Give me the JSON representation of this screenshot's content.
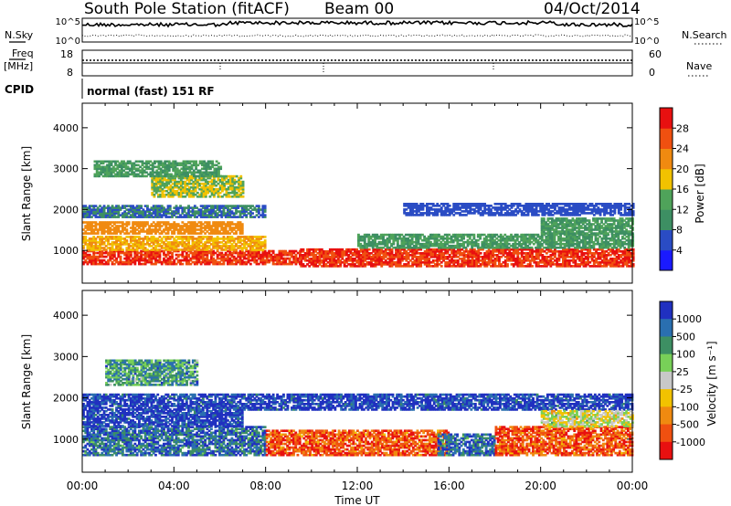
{
  "header": {
    "title": "South Pole Station (fitACF)",
    "beam": "Beam 00",
    "date": "04/Oct/2014"
  },
  "ancillary": {
    "nsky_label": "N.Sky",
    "nsearch_label": "N.Search",
    "nsky_ticks": [
      "10^5",
      "10^0"
    ],
    "freq_label_line1": "Freq",
    "freq_label_line2": "[MHz]",
    "freq_ticks": [
      "18",
      "8"
    ],
    "nave_label": "Nave",
    "nave_ticks": [
      "60",
      "0"
    ],
    "cpid_label": "CPID",
    "cpid_value": "normal (fast) 151 RF"
  },
  "colors": {
    "power_scale": [
      "#1a1aff",
      "#2a4cc4",
      "#3d8f63",
      "#4fa35a",
      "#f2c200",
      "#f08a10",
      "#f05010",
      "#e81010"
    ],
    "velocity_scale": [
      "#e81010",
      "#f05010",
      "#f08a10",
      "#f2c200",
      "#c8c8c8",
      "#78d058",
      "#3d8f63",
      "#2a6fb0",
      "#2030c0"
    ]
  },
  "chart_data": [
    {
      "type": "heatmap",
      "panel": "power",
      "ylabel": "Slant Range [km]",
      "xlabel": "",
      "ylim": [
        200,
        4600
      ],
      "yticks": [
        "1000",
        "2000",
        "3000",
        "4000"
      ],
      "x_ticks": [
        "00:00",
        "04:00",
        "08:00",
        "12:00",
        "16:00",
        "20:00",
        "00:00"
      ],
      "colorbar_title": "Power [dB]",
      "colorbar_ticks": [
        "4",
        "8",
        "12",
        "16",
        "20",
        "24",
        "28"
      ],
      "colorbar_range": [
        0,
        32
      ],
      "bands": [
        {
          "t0": 0.0,
          "t1": 9.5,
          "r0": 650,
          "r1": 1000,
          "level": 28
        },
        {
          "t0": 9.5,
          "t1": 24.0,
          "r0": 600,
          "r1": 1050,
          "level": 28
        },
        {
          "t0": 0.0,
          "t1": 8.0,
          "r0": 1000,
          "r1": 1350,
          "level": 20
        },
        {
          "t0": 0.0,
          "t1": 7.0,
          "r0": 1400,
          "r1": 1700,
          "level": 22
        },
        {
          "t0": 0.0,
          "t1": 8.0,
          "r0": 1800,
          "r1": 2100,
          "level": 8
        },
        {
          "t0": 12.0,
          "t1": 24.0,
          "r0": 1050,
          "r1": 1400,
          "level": 12
        },
        {
          "t0": 20.0,
          "t1": 24.0,
          "r0": 1400,
          "r1": 1800,
          "level": 12
        },
        {
          "t0": 14.0,
          "t1": 24.0,
          "r0": 1850,
          "r1": 2150,
          "level": 6
        },
        {
          "t0": 3.0,
          "t1": 7.0,
          "r0": 2300,
          "r1": 2800,
          "level": 16
        },
        {
          "t0": 0.5,
          "t1": 6.0,
          "r0": 2800,
          "r1": 3200,
          "level": 12
        }
      ]
    },
    {
      "type": "heatmap",
      "panel": "velocity",
      "ylabel": "Slant Range [km]",
      "xlabel": "Time UT",
      "ylim": [
        200,
        4600
      ],
      "yticks": [
        "1000",
        "2000",
        "3000",
        "4000"
      ],
      "x_ticks": [
        "00:00",
        "04:00",
        "08:00",
        "12:00",
        "16:00",
        "20:00",
        "00:00"
      ],
      "colorbar_title": "Velocity [m s⁻¹]",
      "colorbar_ticks": [
        "1000",
        "500",
        "100",
        "25",
        "-25",
        "-100",
        "-500",
        "-1000"
      ],
      "bands": [
        {
          "t0": 0.0,
          "t1": 8.0,
          "r0": 600,
          "r1": 1300,
          "level": 3
        },
        {
          "t0": 0.0,
          "t1": 7.0,
          "r0": 1300,
          "r1": 1700,
          "level": 4
        },
        {
          "t0": 0.0,
          "t1": 24.0,
          "r0": 1700,
          "r1": 2100,
          "level": 4
        },
        {
          "t0": 8.0,
          "t1": 16.0,
          "r0": 600,
          "r1": 1200,
          "level": -3
        },
        {
          "t0": 15.5,
          "t1": 18.0,
          "r0": 600,
          "r1": 1100,
          "level": 3
        },
        {
          "t0": 18.0,
          "t1": 24.0,
          "r0": 600,
          "r1": 1300,
          "level": -3
        },
        {
          "t0": 20.0,
          "t1": 24.0,
          "r0": 1300,
          "r1": 1700,
          "level": 0
        },
        {
          "t0": 1.0,
          "t1": 5.0,
          "r0": 2300,
          "r1": 2900,
          "level": 2
        }
      ]
    }
  ]
}
